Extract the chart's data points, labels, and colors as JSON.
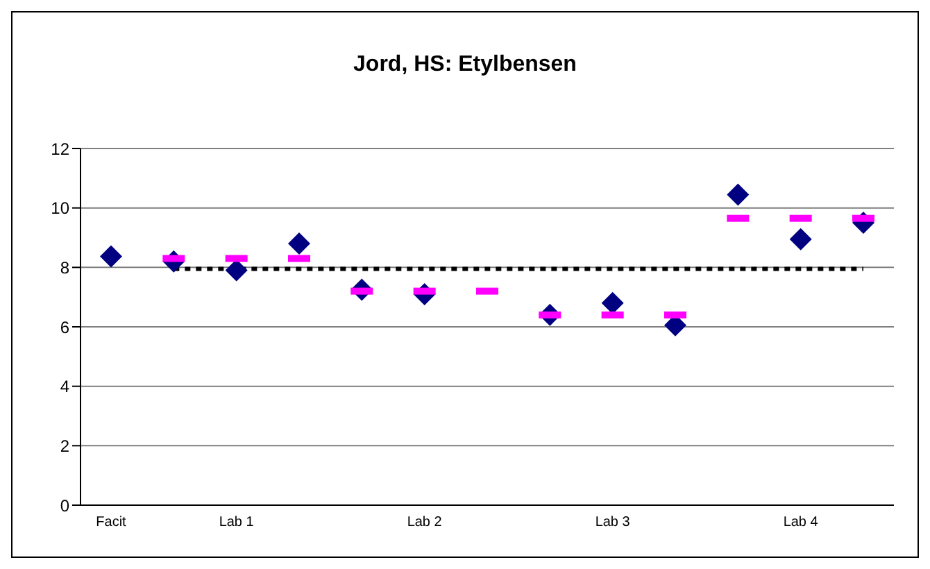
{
  "chart_data": {
    "type": "scatter",
    "title": "Jord, HS: Etylbensen",
    "categories": [
      "Facit",
      null,
      "Lab 1",
      null,
      null,
      "Lab 2",
      null,
      null,
      "Lab 3",
      null,
      null,
      "Lab 4",
      null
    ],
    "series": [
      {
        "color": "#000080",
        "marker": "diamond",
        "values": [
          8.37,
          8.2,
          7.9,
          8.8,
          7.25,
          7.1,
          null,
          6.4,
          6.8,
          6.05,
          10.45,
          8.95,
          9.5
        ]
      },
      {
        "color": "#ff00ff",
        "values": [
          null,
          8.3,
          8.3,
          8.3,
          7.2,
          7.2,
          7.2,
          6.4,
          6.4,
          6.4,
          9.65,
          9.65,
          9.65
        ]
      },
      {
        "type": "line",
        "color": "#000000",
        "marker": "none",
        "line_style": "dotted",
        "values": [
          null,
          7.95,
          7.95,
          7.95,
          7.95,
          7.95,
          7.95,
          7.95,
          7.95,
          7.95,
          7.95,
          7.95,
          7.95
        ]
      }
    ],
    "ylim": [
      0,
      12
    ],
    "yticks": [
      0,
      2,
      4,
      6,
      8,
      10,
      12
    ],
    "grid": "y",
    "legend": false
  }
}
